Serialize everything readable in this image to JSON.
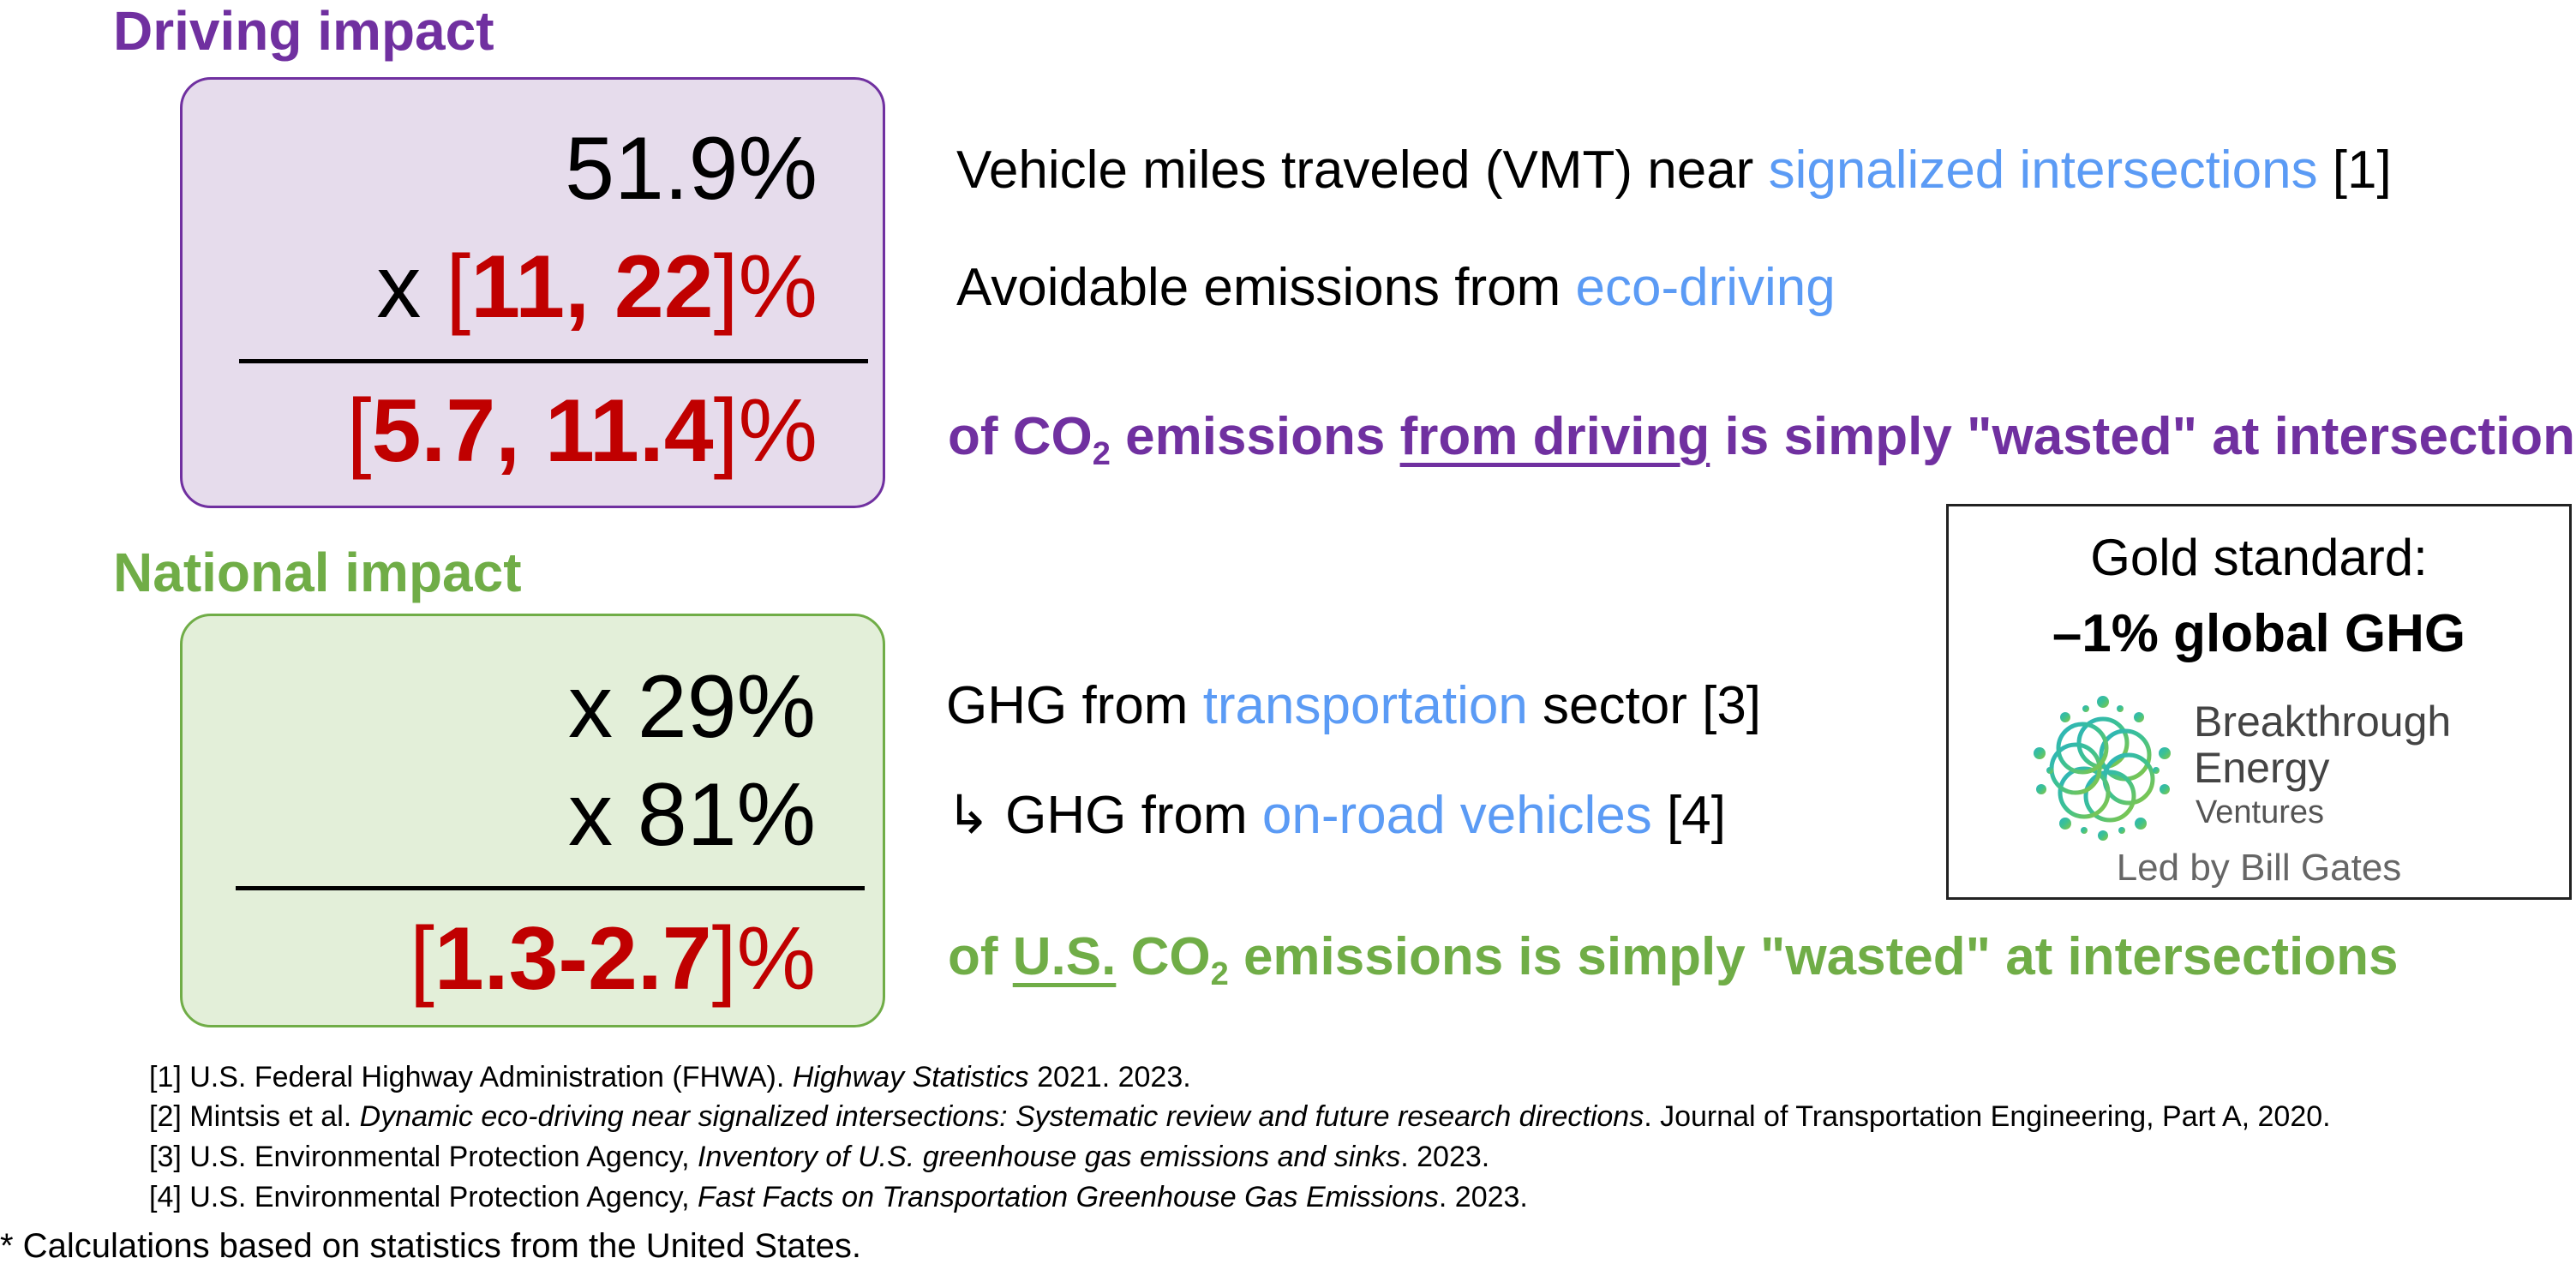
{
  "driving": {
    "title": "Driving impact",
    "line1": "51.9%",
    "line2_prefix": "x ",
    "line2_bracket_open": "[",
    "line2_values": "11, 22",
    "line2_bracket_close": "]%",
    "result_bracket_open": "[",
    "result_values": "5.7, 11.4",
    "result_bracket_close": "]%",
    "desc1_text": "Vehicle miles traveled (VMT) near ",
    "desc1_highlight": "signalized intersections",
    "desc1_ref": " [1]",
    "desc2_text": "Avoidable emissions from ",
    "desc2_highlight": "eco-driving",
    "concl_a": "of CO",
    "concl_sub": "2",
    "concl_b": " emissions ",
    "concl_underline": "from driving",
    "concl_c": " is simply \"wasted\" at intersections"
  },
  "national": {
    "title": "National impact",
    "line1": "x 29%",
    "line2": "x 81%",
    "result_bracket_open": "[",
    "result_values": "1.3-2.7",
    "result_bracket_close": "]%",
    "desc1_text": "GHG from ",
    "desc1_highlight": "transportation",
    "desc1_tail": " sector [3]",
    "desc2_arrow": "↳",
    "desc2_text": " GHG from ",
    "desc2_highlight": "on-road vehicles",
    "desc2_tail": " [4]",
    "concl_a": "of ",
    "concl_underline": "U.S.",
    "concl_b": " CO",
    "concl_sub": "2",
    "concl_c": " emissions is simply \"wasted\" at intersections"
  },
  "gold_standard": {
    "heading": "Gold standard:",
    "goal": "–1% global GHG",
    "logo_line1": "Breakthrough",
    "logo_line2": "Energy",
    "logo_line3": "Ventures",
    "caption": "Led by Bill Gates"
  },
  "references": [
    {
      "pre": "[1] U.S. Federal Highway Administration (FHWA). ",
      "ital": "Highway Statistics",
      "post": " 2021. 2023."
    },
    {
      "pre": "[2] Mintsis et al. ",
      "ital": "Dynamic eco-driving near signalized intersections: Systematic review and future research directions",
      "post": ". Journal of Transportation Engineering, Part A, 2020."
    },
    {
      "pre": "[3] U.S. Environmental Protection Agency, ",
      "ital": "Inventory of U.S. greenhouse gas emissions and sinks",
      "post": ". 2023."
    },
    {
      "pre": "[4] U.S. Environmental Protection Agency, ",
      "ital": "Fast Facts on Transportation Greenhouse Gas Emissions",
      "post": ". 2023."
    }
  ],
  "footnote": "* Calculations based on statistics from the United States.",
  "colors": {
    "purple": "#7030A0",
    "green": "#70AD47",
    "blue": "#5B9BF5",
    "red": "#C00000",
    "purple_box_fill": "#E6DCEC",
    "green_box_fill": "#E3EFD9"
  }
}
